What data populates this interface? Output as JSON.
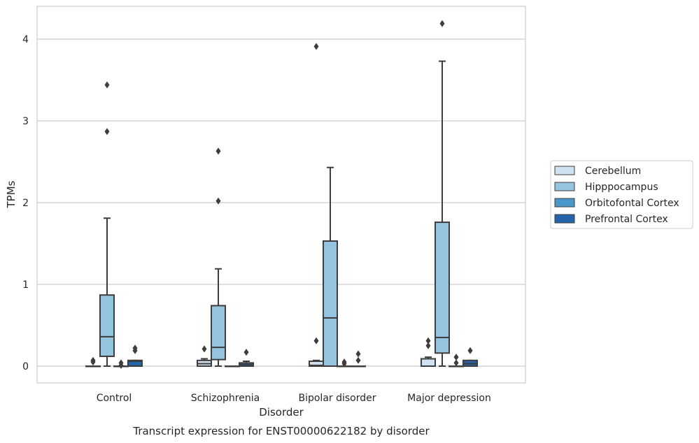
{
  "chart_data": {
    "type": "box",
    "title": "Transcript expression for ENST00000622182 by disorder",
    "xlabel": "Disorder",
    "ylabel": "TPMs",
    "ylim": [
      -0.2,
      4.4
    ],
    "yticks": [
      0,
      1,
      2,
      3,
      4
    ],
    "grid": true,
    "legend_position": "right",
    "categories": [
      "Control",
      "Schizophrenia",
      "Bipolar disorder",
      "Major depression"
    ],
    "series": [
      {
        "name": "Cerebellum",
        "color": "#d0e1f2",
        "boxes": [
          {
            "whislo": 0,
            "q1": 0,
            "med": 0,
            "q3": 0,
            "whishi": 0,
            "fliers": [
              0.07,
              0.05
            ]
          },
          {
            "whislo": 0,
            "q1": 0,
            "med": 0.03,
            "q3": 0.07,
            "whishi": 0.09,
            "fliers": [
              0.21
            ]
          },
          {
            "whislo": 0,
            "q1": 0,
            "med": 0.01,
            "q3": 0.06,
            "whishi": 0.07,
            "fliers": [
              0.31,
              3.91
            ]
          },
          {
            "whislo": 0,
            "q1": 0,
            "med": 0,
            "q3": 0.09,
            "whishi": 0.11,
            "fliers": [
              0.25,
              0.31
            ]
          }
        ]
      },
      {
        "name": "Hipppocampus",
        "color": "#94c4df",
        "boxes": [
          {
            "whislo": 0,
            "q1": 0.12,
            "med": 0.36,
            "q3": 0.87,
            "whishi": 1.81,
            "fliers": [
              2.87,
              3.44
            ]
          },
          {
            "whislo": 0,
            "q1": 0.08,
            "med": 0.23,
            "q3": 0.74,
            "whishi": 1.19,
            "fliers": [
              2.02,
              2.63
            ]
          },
          {
            "whislo": 0,
            "q1": 0,
            "med": 0.59,
            "q3": 1.53,
            "whishi": 2.43,
            "fliers": []
          },
          {
            "whislo": 0,
            "q1": 0.16,
            "med": 0.35,
            "q3": 1.76,
            "whishi": 3.73,
            "fliers": [
              4.19
            ]
          }
        ]
      },
      {
        "name": "Orbitofontal Cortex",
        "color": "#4a98c9",
        "boxes": [
          {
            "whislo": 0,
            "q1": 0,
            "med": 0,
            "q3": 0,
            "whishi": 0,
            "fliers": [
              0.04,
              0.01
            ]
          },
          {
            "whislo": 0,
            "q1": 0,
            "med": 0,
            "q3": 0,
            "whishi": 0,
            "fliers": []
          },
          {
            "whislo": 0,
            "q1": 0,
            "med": 0,
            "q3": 0,
            "whishi": 0,
            "fliers": [
              0.05,
              0.03
            ]
          },
          {
            "whislo": 0,
            "q1": 0,
            "med": 0,
            "q3": 0,
            "whishi": 0,
            "fliers": [
              0.11,
              0.04
            ]
          }
        ]
      },
      {
        "name": "Prefrontal Cortex",
        "color": "#2464a8",
        "boxes": [
          {
            "whislo": 0,
            "q1": 0,
            "med": 0.06,
            "q3": 0.07,
            "whishi": 0.07,
            "fliers": [
              0.19,
              0.22
            ]
          },
          {
            "whislo": 0,
            "q1": 0,
            "med": 0.02,
            "q3": 0.04,
            "whishi": 0.06,
            "fliers": [
              0.17
            ]
          },
          {
            "whislo": 0,
            "q1": 0,
            "med": 0,
            "q3": 0,
            "whishi": 0,
            "fliers": [
              0.07,
              0.15
            ]
          },
          {
            "whislo": 0,
            "q1": 0,
            "med": 0.03,
            "q3": 0.07,
            "whishi": 0.07,
            "fliers": [
              0.19
            ]
          }
        ]
      }
    ]
  }
}
